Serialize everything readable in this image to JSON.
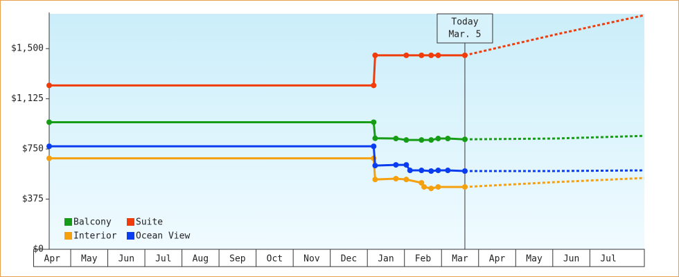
{
  "chart_data": {
    "type": "line",
    "categories": [
      "Apr",
      "May",
      "Jun",
      "Jul",
      "Aug",
      "Sep",
      "Oct",
      "Nov",
      "Dec",
      "Jan",
      "Feb",
      "Mar",
      "Apr",
      "May",
      "Jun",
      "Jul"
    ],
    "xlim": [
      -0.08,
      15.97
    ],
    "ylim": [
      0,
      1760
    ],
    "yticks": [
      {
        "value": 0,
        "label": "$0"
      },
      {
        "value": 375,
        "label": "$375"
      },
      {
        "value": 750,
        "label": "$750"
      },
      {
        "value": 1125,
        "label": "$1,125"
      },
      {
        "value": 1500,
        "label": "$1,500"
      }
    ],
    "legend": "bottom-left",
    "annotation": {
      "x": 11.13,
      "lines": [
        "Today",
        "Mar. 5"
      ]
    },
    "series": [
      {
        "name": "Balcony",
        "color": "#169c16",
        "x": [
          -0.08,
          8.67,
          8.71,
          9.27,
          9.55,
          9.96,
          10.22,
          10.41,
          10.67,
          11.13
        ],
        "values": [
          950,
          950,
          830,
          828,
          817,
          817,
          817,
          828,
          828,
          822
        ],
        "forecast": {
          "x": [
            11.13,
            13.55,
            15.97
          ],
          "values": [
            822,
            828,
            848
          ]
        }
      },
      {
        "name": "Suite",
        "color": "#f03c0a",
        "x": [
          -0.08,
          8.67,
          8.71,
          9.55,
          9.96,
          10.22,
          10.41,
          11.13
        ],
        "values": [
          1225,
          1225,
          1450,
          1450,
          1450,
          1450,
          1450,
          1450
        ],
        "forecast": {
          "x": [
            11.13,
            13.55,
            15.97
          ],
          "values": [
            1450,
            1604,
            1750
          ]
        }
      },
      {
        "name": "Interior",
        "color": "#f5a00f",
        "x": [
          -0.08,
          8.67,
          8.71,
          9.27,
          9.55,
          9.96,
          10.03,
          10.22,
          10.41,
          11.13
        ],
        "values": [
          680,
          680,
          522,
          528,
          522,
          497,
          466,
          455,
          466,
          466
        ],
        "forecast": {
          "x": [
            11.13,
            13.55,
            15.97
          ],
          "values": [
            466,
            502,
            533
          ]
        }
      },
      {
        "name": "Ocean View",
        "color": "#0a3cf0",
        "x": [
          -0.08,
          8.67,
          8.71,
          9.27,
          9.55,
          9.65,
          9.96,
          10.22,
          10.41,
          10.67,
          11.13
        ],
        "values": [
          770,
          770,
          626,
          631,
          631,
          590,
          590,
          585,
          590,
          590,
          585
        ],
        "forecast": {
          "x": [
            11.13,
            13.55,
            15.97
          ],
          "values": [
            585,
            585,
            590
          ]
        }
      }
    ]
  }
}
